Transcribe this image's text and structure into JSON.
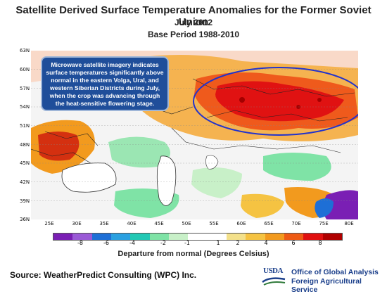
{
  "title": {
    "line1": "Satellite Derived Surface Temperature Anomalies for the Former Soviet Union",
    "line2": "July 2012",
    "line3": "Base Period 1988-2010"
  },
  "map": {
    "lat_labels": [
      "63N",
      "60N",
      "57N",
      "54N",
      "51N",
      "48N",
      "45N",
      "42N",
      "39N",
      "36N"
    ],
    "lon_labels": [
      "25E",
      "30E",
      "35E",
      "40E",
      "45E",
      "50E",
      "55E",
      "60E",
      "65E",
      "70E",
      "75E",
      "80E"
    ],
    "callout": "Microwave satellite imagery indicates surface temperatures significantly above normal in the eastern Volga, Ural, and western Siberian Districts during July, when the crop was advancing through the heat-sensitive flowering stage.",
    "highlight_color": "#2233cc",
    "water_color": "#ffffff"
  },
  "legend": {
    "colors": [
      "#7a1fb4",
      "#9a5ad6",
      "#1e6fd6",
      "#2aa0e0",
      "#22c8b4",
      "#7fe3a6",
      "#c8f0c8",
      "#ffffff",
      "#ffffff",
      "#f3e08a",
      "#f5c342",
      "#f29a1e",
      "#ee5a14",
      "#e01010",
      "#b00000"
    ],
    "ticks": [
      "-8",
      "-6",
      "-4",
      "-2",
      "-1",
      "1",
      "2",
      "4",
      "6",
      "8"
    ],
    "caption": "Departure from normal (Degrees Celsius)"
  },
  "footer": {
    "source": "Source: WeatherPredict Consulting (WPC) Inc.",
    "logo_text": "USDA",
    "agency_line1": "Office of Global Analysis",
    "agency_line2": "Foreign Agricultural Service"
  }
}
